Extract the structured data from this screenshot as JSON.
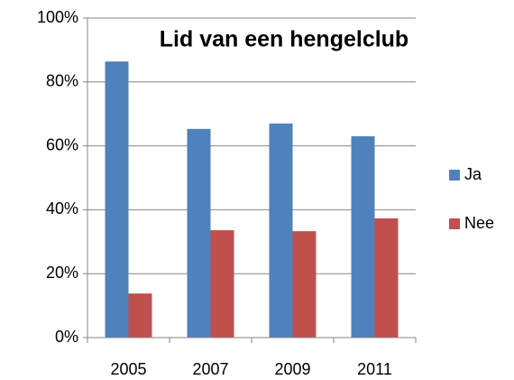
{
  "chart_data": {
    "type": "bar",
    "title": "Lid van een hengelclub",
    "categories": [
      "2005",
      "2007",
      "2009",
      "2011"
    ],
    "series": [
      {
        "name": "Ja",
        "color": "#4f81bd",
        "values": [
          86.4,
          65.3,
          67,
          63
        ]
      },
      {
        "name": "Nee",
        "color": "#c0504d",
        "values": [
          13.8,
          33.6,
          33.3,
          37.3
        ]
      }
    ],
    "ylim": [
      0,
      100
    ],
    "yticks": [
      {
        "value": 0,
        "label": "0%"
      },
      {
        "value": 20,
        "label": "20%"
      },
      {
        "value": 40,
        "label": "40%"
      },
      {
        "value": 60,
        "label": "60%"
      },
      {
        "value": 80,
        "label": "80%"
      },
      {
        "value": 100,
        "label": "100%"
      }
    ],
    "grid": true,
    "legend": "right"
  }
}
